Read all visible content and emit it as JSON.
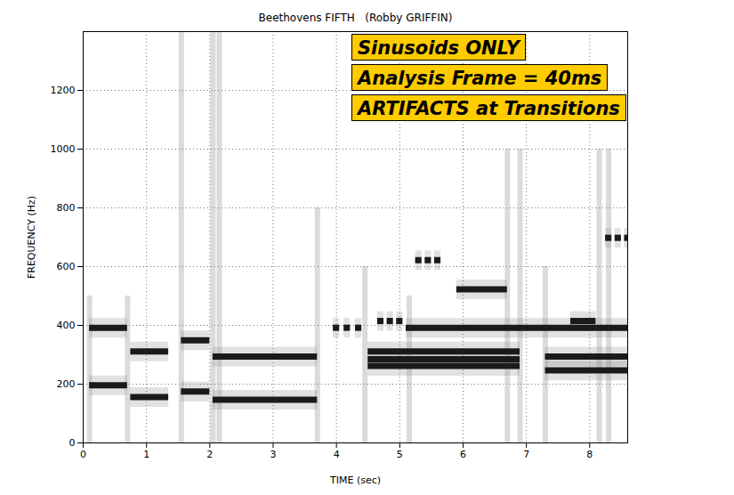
{
  "chart_data": {
    "type": "spectrogram",
    "title": "Beethovens FIFTH   (Robby GRIFFIN)",
    "x_label": "TIME (sec)",
    "y_label": "FREQUENCY (Hz)",
    "xlim": [
      0,
      8.6
    ],
    "ylim": [
      0,
      1400
    ],
    "xticks": [
      0,
      1,
      2,
      3,
      4,
      5,
      6,
      7,
      8
    ],
    "yticks": [
      0,
      200,
      400,
      600,
      800,
      1000,
      1200
    ],
    "grid": true,
    "color": "#1a1a1a",
    "annotations": [
      "Sinusoids ONLY",
      "Analysis Frame = 40ms",
      "ARTIFACTS at Transitions"
    ],
    "segments": {
      "start": [
        0.1,
        0.1,
        0.75,
        0.75,
        1.55,
        1.55,
        2.05,
        2.05,
        3.95,
        4.12,
        4.3,
        4.5,
        4.5,
        4.5,
        4.65,
        4.8,
        4.95,
        5.1,
        5.25,
        5.4,
        5.55,
        5.9,
        7.3,
        7.3,
        7.7,
        8.25,
        8.4,
        8.55
      ],
      "end": [
        0.7,
        0.7,
        1.35,
        1.35,
        2.0,
        2.0,
        3.7,
        3.7,
        4.05,
        4.22,
        4.4,
        6.9,
        6.9,
        6.9,
        4.75,
        4.9,
        5.05,
        8.6,
        5.35,
        5.5,
        5.65,
        6.7,
        8.6,
        8.6,
        8.1,
        8.35,
        8.5,
        8.6
      ],
      "frequency": [
        392,
        196,
        311,
        156,
        349,
        175,
        294,
        147,
        392,
        392,
        392,
        311,
        285,
        262,
        415,
        415,
        415,
        392,
        622,
        622,
        622,
        523,
        294,
        247,
        415,
        698,
        698,
        698
      ]
    },
    "transition_artifacts": {
      "time": [
        0.1,
        0.7,
        1.55,
        2.05,
        2.15,
        3.7,
        4.45,
        5.15,
        6.7,
        6.9,
        7.3,
        8.15,
        8.3
      ],
      "top": [
        500,
        500,
        1400,
        1400,
        1400,
        800,
        600,
        500,
        1000,
        1000,
        600,
        1000,
        1000
      ]
    }
  }
}
